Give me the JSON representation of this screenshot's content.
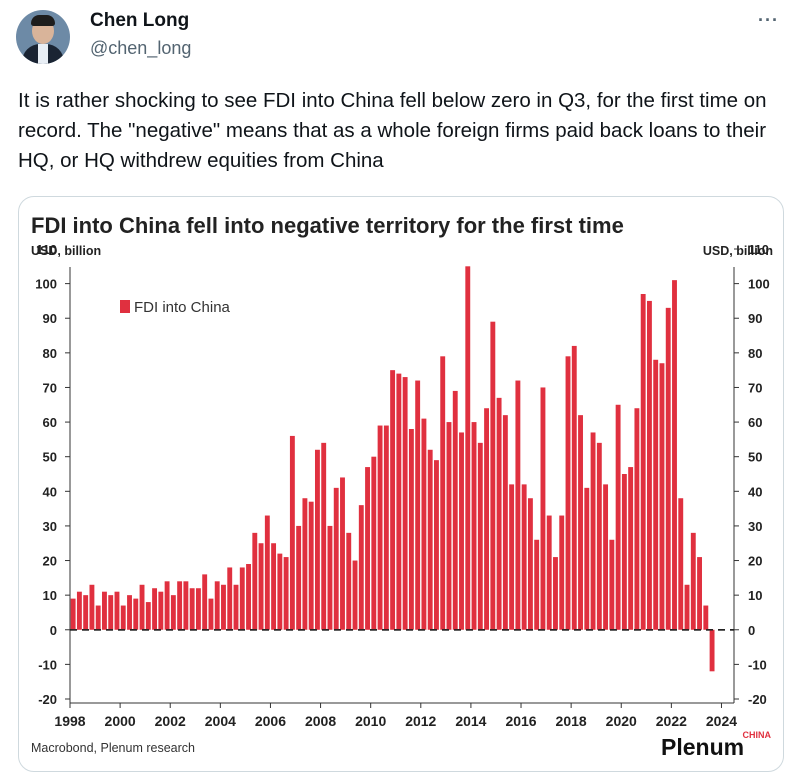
{
  "author": {
    "name": "Chen Long",
    "handle": "@chen_long"
  },
  "more_icon": "more-horizontal-icon",
  "tweet": {
    "text": "It is rather shocking to see FDI into China fell below zero in Q3, for the first time on record. The \"negative\" means that as a whole foreign firms paid back loans to their HQ, or HQ withdrew equities from China"
  },
  "chart_data": {
    "type": "bar",
    "title": "FDI into China fell into negative territory for the first time",
    "ylabel_left": "USD, billion",
    "ylabel_right": "USD, billion",
    "legend": "FDI into China",
    "source": "Macrobond, Plenum research",
    "brand": "Plenum",
    "brand_sub": "CHINA",
    "bar_color": "#e0303f",
    "ylim": [
      -20,
      110
    ],
    "yticks": [
      110,
      100,
      90,
      80,
      70,
      60,
      50,
      40,
      30,
      20,
      10,
      0,
      -10,
      -20
    ],
    "xticks": [
      "1998",
      "2000",
      "2002",
      "2004",
      "2006",
      "2008",
      "2010",
      "2012",
      "2014",
      "2016",
      "2018",
      "2020",
      "2022",
      "2024"
    ],
    "x_start": 1998,
    "x_end": 2024.5,
    "quarters_start": "1998Q1",
    "values": [
      9,
      11,
      10,
      13,
      7,
      11,
      10,
      11,
      7,
      10,
      9,
      13,
      8,
      12,
      11,
      14,
      10,
      14,
      14,
      12,
      12,
      16,
      9,
      14,
      13,
      18,
      13,
      18,
      19,
      28,
      25,
      33,
      25,
      22,
      21,
      56,
      30,
      38,
      37,
      52,
      54,
      30,
      41,
      44,
      28,
      20,
      36,
      47,
      50,
      59,
      59,
      75,
      74,
      73,
      58,
      72,
      61,
      52,
      49,
      79,
      60,
      69,
      57,
      105,
      60,
      54,
      64,
      89,
      67,
      62,
      42,
      72,
      42,
      38,
      26,
      70,
      33,
      21,
      33,
      79,
      82,
      62,
      41,
      57,
      54,
      42,
      26,
      65,
      45,
      47,
      64,
      97,
      95,
      78,
      77,
      93,
      101,
      38,
      13,
      28,
      21,
      7,
      -12
    ]
  }
}
